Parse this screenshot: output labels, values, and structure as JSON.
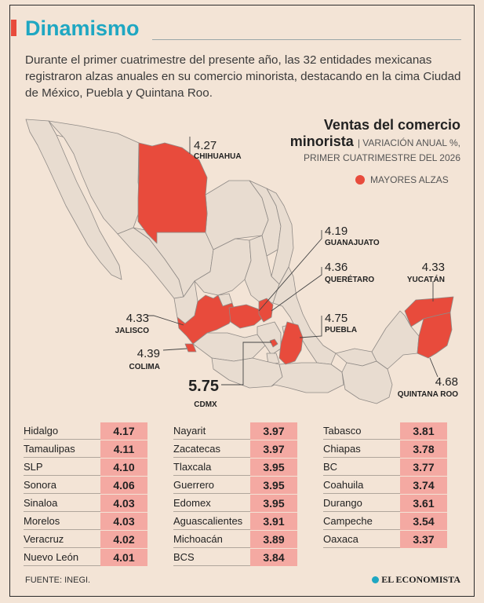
{
  "header": {
    "title": "Dinamismo",
    "intro": "Durante el primer cuatrimestre del presente año, las 32 entidades mexicanas registraron alzas anuales en su comercio minorista, destacando en la cima Ciudad de México, Puebla y Quintana Roo."
  },
  "map": {
    "title_line1": "Ventas del comercio",
    "title_line2": "minorista",
    "subtitle_1": "| VARIACIÓN ANUAL %,",
    "subtitle_2": "PRIMER CUATRIMESTRE DEL 2026",
    "legend_label": "MAYORES ALZAS",
    "highlight_color": "#e84b3c",
    "base_color": "#e8dcd0",
    "labels": [
      {
        "value": "4.27",
        "name": "CHIHUAHUA"
      },
      {
        "value": "4.19",
        "name": "GUANAJUATO"
      },
      {
        "value": "4.36",
        "name": "QUERÉTARO"
      },
      {
        "value": "4.33",
        "name": "YUCATÁN"
      },
      {
        "value": "4.33",
        "name": "JALISCO"
      },
      {
        "value": "4.75",
        "name": "PUEBLA"
      },
      {
        "value": "4.39",
        "name": "COLIMA"
      },
      {
        "value": "4.68",
        "name": "QUINTANA ROO"
      },
      {
        "value": "5.75",
        "name": "CDMX"
      }
    ]
  },
  "table": {
    "col1": [
      {
        "name": "Hidalgo",
        "value": "4.17"
      },
      {
        "name": "Tamaulipas",
        "value": "4.11"
      },
      {
        "name": "SLP",
        "value": "4.10"
      },
      {
        "name": "Sonora",
        "value": "4.06"
      },
      {
        "name": "Sinaloa",
        "value": "4.03"
      },
      {
        "name": "Morelos",
        "value": "4.03"
      },
      {
        "name": "Veracruz",
        "value": "4.02"
      },
      {
        "name": "Nuevo León",
        "value": "4.01"
      }
    ],
    "col2": [
      {
        "name": "Nayarit",
        "value": "3.97"
      },
      {
        "name": "Zacatecas",
        "value": "3.97"
      },
      {
        "name": "Tlaxcala",
        "value": "3.95"
      },
      {
        "name": "Guerrero",
        "value": "3.95"
      },
      {
        "name": "Edomex",
        "value": "3.95"
      },
      {
        "name": "Aguascalientes",
        "value": "3.91"
      },
      {
        "name": "Michoacán",
        "value": "3.89"
      },
      {
        "name": "BCS",
        "value": "3.84"
      }
    ],
    "col3": [
      {
        "name": "Tabasco",
        "value": "3.81"
      },
      {
        "name": "Chiapas",
        "value": "3.78"
      },
      {
        "name": "BC",
        "value": "3.77"
      },
      {
        "name": "Coahuila",
        "value": "3.74"
      },
      {
        "name": "Durango",
        "value": "3.61"
      },
      {
        "name": "Campeche",
        "value": "3.54"
      },
      {
        "name": "Oaxaca",
        "value": "3.37"
      }
    ]
  },
  "footer": {
    "source": "FUENTE:  INEGI.",
    "brand": "EL ECONOMISTA"
  }
}
